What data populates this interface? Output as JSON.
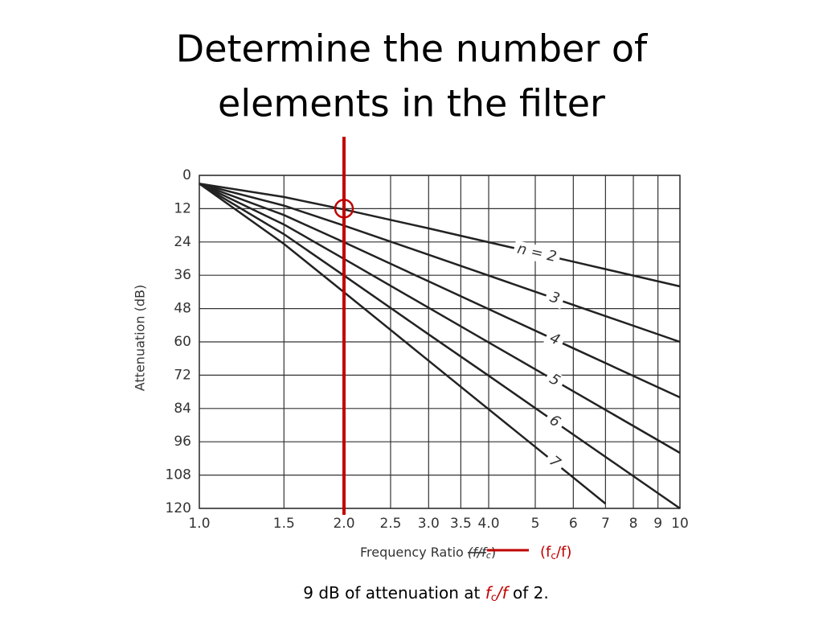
{
  "chart_data": {
    "type": "line",
    "title": [
      "Determine the number of",
      "elements in the filter"
    ],
    "xlabel": [
      "Frequency Ratio ",
      "(f/f",
      "c",
      ")"
    ],
    "xlabel_alt": [
      "(f",
      "c",
      "/f)"
    ],
    "ylabel": "Attenuation (dB)",
    "caption": [
      "9 dB of attenuation at ",
      "f",
      "c",
      "/f",
      " of 2."
    ],
    "xscale": "log",
    "xlim": [
      1,
      10
    ],
    "ylim": [
      0,
      120
    ],
    "y_inverted": true,
    "grid": true,
    "xticks": [
      {
        "value": 1,
        "label": "1.0"
      },
      {
        "value": 1.5,
        "label": "1.5"
      },
      {
        "value": 2,
        "label": "2.0"
      },
      {
        "value": 2.5,
        "label": "2.5"
      },
      {
        "value": 3,
        "label": "3.0"
      },
      {
        "value": 3.5,
        "label": "3.5"
      },
      {
        "value": 4,
        "label": "4.0"
      },
      5,
      6,
      7,
      8,
      9,
      10
    ],
    "yticks": [
      0,
      12,
      24,
      36,
      48,
      60,
      72,
      84,
      96,
      108,
      120
    ],
    "series": [
      {
        "name": "n = 2",
        "color": "#222222",
        "x": [
          1,
          1.5,
          2,
          3,
          4,
          6,
          10
        ],
        "values": [
          3,
          7.8,
          12.3,
          19.1,
          24.1,
          31.1,
          40
        ]
      },
      {
        "name": "3",
        "color": "#222222",
        "x": [
          1,
          1.5,
          2,
          3,
          4,
          6,
          10
        ],
        "values": [
          3,
          10.9,
          18.1,
          28.6,
          36.1,
          46.7,
          60
        ]
      },
      {
        "name": "4",
        "color": "#222222",
        "x": [
          1,
          1.5,
          2,
          3,
          4,
          6,
          10
        ],
        "values": [
          3,
          14.3,
          24.1,
          38.2,
          48.2,
          62.3,
          80
        ]
      },
      {
        "name": "5",
        "color": "#222222",
        "x": [
          1,
          1.5,
          2,
          3,
          4,
          6,
          10
        ],
        "values": [
          3,
          17.7,
          30.1,
          47.7,
          60.2,
          77.8,
          100
        ]
      },
      {
        "name": "6",
        "color": "#222222",
        "x": [
          1,
          1.5,
          2,
          3,
          4,
          6,
          10
        ],
        "values": [
          3,
          21.2,
          36.1,
          57.3,
          72.2,
          93.4,
          120
        ]
      },
      {
        "name": "7",
        "color": "#222222",
        "x": [
          1,
          1.5,
          2,
          3,
          4,
          6,
          7
        ],
        "values": [
          3,
          24.7,
          42.1,
          66.8,
          84.3,
          108.9,
          118.3
        ]
      }
    ],
    "highlight": {
      "x": 2,
      "y": 12,
      "color": "#c00000"
    }
  }
}
